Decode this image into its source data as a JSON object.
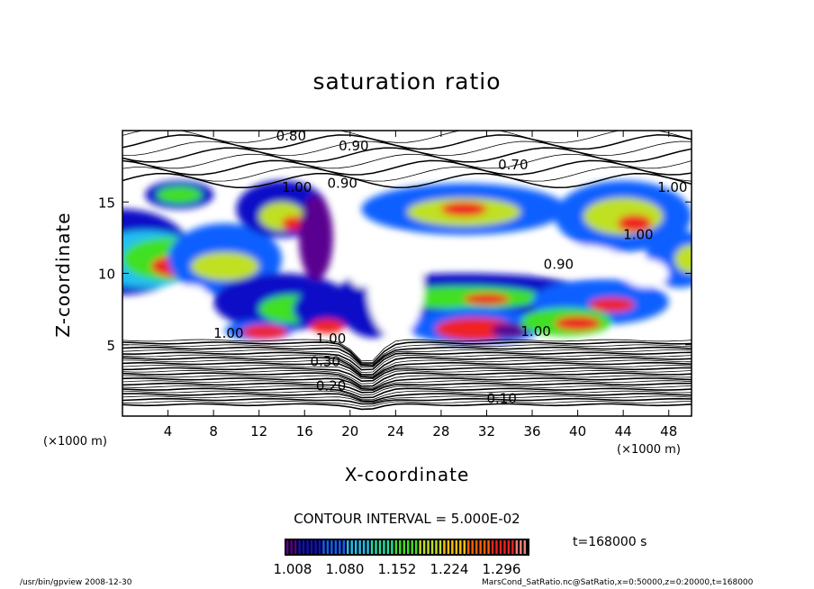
{
  "chart_data": {
    "type": "heatmap",
    "title": "saturation ratio",
    "xlabel": "X-coordinate",
    "ylabel": "Z-coordinate",
    "x_unit_left": "(×1000 m)",
    "x_unit_right": "(×1000 m)",
    "xlim": [
      0,
      50
    ],
    "ylim": [
      0,
      20
    ],
    "xticks": [
      4,
      8,
      12,
      16,
      20,
      24,
      28,
      32,
      36,
      40,
      44,
      48
    ],
    "yticks": [
      5,
      10,
      15
    ],
    "contour_interval_text": "CONTOUR INTERVAL = 5.000E-02",
    "contour_labels": [
      "0.80",
      "0.90",
      "1.00",
      "0.70",
      "0.90",
      "1.00",
      "1.00",
      "0.90",
      "1.00",
      "1.00",
      "1.00",
      "0.30",
      "0.20",
      "0.10"
    ],
    "colorbar": {
      "ticks": [
        "1.008",
        "1.080",
        "1.152",
        "1.224",
        "1.296"
      ],
      "colors": [
        "#5a0090",
        "#1010c8",
        "#1060ff",
        "#20c0f0",
        "#20e0a0",
        "#40e020",
        "#c0e020",
        "#ffc000",
        "#ff6000",
        "#f02020",
        "#f08080"
      ]
    },
    "time_label": "t=168000 s",
    "footer_left": "/usr/bin/gpview   2008-12-30",
    "footer_right": "MarsCond_SatRatio.nc@SatRatio,x=0:50000,z=0:20000,t=168000"
  }
}
